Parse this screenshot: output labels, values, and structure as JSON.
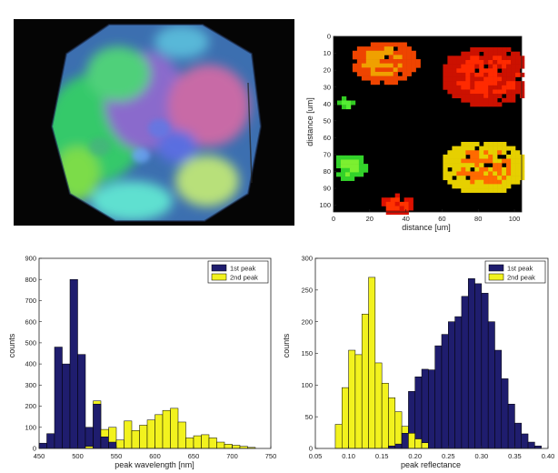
{
  "colors": {
    "first_peak": "#1f1d6e",
    "second_peak": "#f2f21e",
    "axis": "#222222",
    "photo_bg": "#050505",
    "map_bg": "#000000"
  },
  "chart_data": [
    {
      "type": "heatmap",
      "xlabel": "distance [um]",
      "ylabel": "distance [um]",
      "xlim": [
        0,
        104
      ],
      "ylim": [
        0,
        104
      ],
      "y_inverted": true,
      "x_ticks": [
        0,
        20,
        40,
        60,
        80,
        100
      ],
      "y_ticks": [
        0,
        10,
        20,
        30,
        40,
        50,
        60,
        70,
        80,
        90,
        100
      ],
      "regions": [
        {
          "cx": 27,
          "cy": 14,
          "rx": 19,
          "ry": 13,
          "color": "#ee4400",
          "tint": "#f0a000"
        },
        {
          "cx": 84,
          "cy": 22,
          "rx": 26,
          "ry": 18,
          "color": "#cc1100",
          "tint": "#ff2a00"
        },
        {
          "cx": 82,
          "cy": 76,
          "rx": 24,
          "ry": 16,
          "color": "#e6d000",
          "tint": "#ff6a00"
        },
        {
          "cx": 8,
          "cy": 76,
          "rx": 9,
          "ry": 8,
          "color": "#33d22a",
          "tint": "#7cf030"
        },
        {
          "cx": 34,
          "cy": 99,
          "rx": 10,
          "ry": 6,
          "color": "#dd1100",
          "tint": "#ff3300"
        },
        {
          "cx": 6,
          "cy": 38,
          "rx": 4,
          "ry": 5,
          "color": "#33cc22",
          "tint": "#55ee33"
        }
      ]
    },
    {
      "type": "bar",
      "xlabel": "peak wavelength [nm]",
      "ylabel": "counts",
      "xlim": [
        450,
        750
      ],
      "ylim": [
        0,
        900
      ],
      "x_ticks": [
        450,
        500,
        550,
        600,
        650,
        700,
        750
      ],
      "y_ticks": [
        0,
        100,
        200,
        300,
        400,
        500,
        600,
        700,
        800,
        900
      ],
      "legend": "top-right",
      "bin_width": 10,
      "x": [
        455,
        465,
        475,
        485,
        495,
        505,
        515,
        525,
        535,
        545,
        555,
        565,
        575,
        585,
        595,
        605,
        615,
        625,
        635,
        645,
        655,
        665,
        675,
        685,
        695,
        705,
        715,
        725
      ],
      "series": [
        {
          "name": "1st peak",
          "values": [
            25,
            70,
            480,
            400,
            800,
            445,
            100,
            210,
            55,
            30,
            0,
            0,
            0,
            0,
            0,
            0,
            0,
            0,
            0,
            0,
            0,
            0,
            0,
            0,
            0,
            0,
            0,
            0
          ]
        },
        {
          "name": "2nd peak",
          "values": [
            0,
            0,
            0,
            0,
            0,
            0,
            10,
            225,
            90,
            100,
            40,
            130,
            85,
            110,
            135,
            160,
            180,
            190,
            125,
            50,
            60,
            65,
            50,
            30,
            20,
            15,
            10,
            5
          ]
        }
      ]
    },
    {
      "type": "bar",
      "xlabel": "peak reflectance",
      "ylabel": "counts",
      "xlim": [
        0.05,
        0.4
      ],
      "ylim": [
        0,
        300
      ],
      "x_ticks": [
        0.05,
        0.1,
        0.15,
        0.2,
        0.25,
        0.3,
        0.35,
        0.4
      ],
      "y_ticks": [
        0,
        50,
        100,
        150,
        200,
        250,
        300
      ],
      "legend": "top-right",
      "bin_width": 0.01,
      "x": [
        0.085,
        0.095,
        0.105,
        0.115,
        0.125,
        0.135,
        0.145,
        0.155,
        0.165,
        0.175,
        0.185,
        0.195,
        0.205,
        0.215,
        0.225,
        0.235,
        0.245,
        0.255,
        0.265,
        0.275,
        0.285,
        0.295,
        0.305,
        0.315,
        0.325,
        0.335,
        0.345,
        0.355,
        0.365,
        0.375,
        0.385
      ],
      "series": [
        {
          "name": "1st peak",
          "values": [
            0,
            0,
            0,
            0,
            0,
            0,
            0,
            0,
            4,
            7,
            24,
            90,
            113,
            125,
            124,
            162,
            180,
            200,
            208,
            240,
            268,
            260,
            245,
            200,
            155,
            110,
            70,
            40,
            23,
            10,
            4
          ]
        },
        {
          "name": "2nd peak",
          "values": [
            38,
            96,
            155,
            148,
            212,
            270,
            135,
            103,
            80,
            58,
            35,
            24,
            15,
            9,
            0,
            0,
            0,
            0,
            0,
            0,
            0,
            0,
            0,
            0,
            0,
            0,
            0,
            0,
            0,
            0,
            0
          ]
        }
      ]
    }
  ]
}
